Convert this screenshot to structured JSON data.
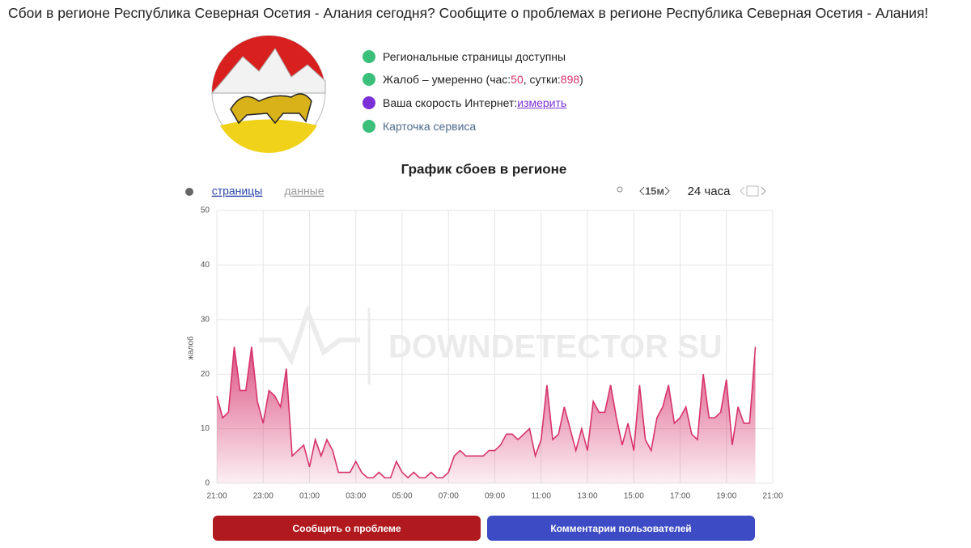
{
  "header": {
    "title": "Сбои в регионе Республика Северная Осетия - Алания сегодня? Сообщите о проблемах в регионе Республика Северная Осетия - Алания!"
  },
  "status": {
    "items": [
      {
        "text": "Региональные страницы доступны"
      },
      {
        "text": "Жалоб – умеренно (час: ",
        "hour": 50,
        "mid": ", сутки: ",
        "day": 898,
        "end": ")"
      },
      {
        "text": "Ваша скорость Интернет: ",
        "link": "измерить"
      },
      {
        "text": "Карточка сервиса"
      }
    ]
  },
  "toolbar": {
    "tabs": [
      "страницы",
      "данные"
    ],
    "interval": "15м",
    "range": "24 часа"
  },
  "buttons": [
    "Сообщить о проблеме",
    "Комментарии пользователей"
  ],
  "chart_data": {
    "type": "area",
    "title": "График сбоев в регионе",
    "y_label": "жалоб",
    "watermark": "DOWNDETECTOR SU",
    "color": "#d6336c",
    "grid": true,
    "x": [
      0,
      0.25,
      0.5,
      0.75,
      1,
      1.25,
      1.5,
      1.75,
      2,
      2.25,
      2.5,
      2.75,
      3,
      3.25,
      3.5,
      3.75,
      4,
      4.25,
      4.5,
      4.75,
      5,
      5.25,
      5.5,
      5.75,
      6,
      6.25,
      6.5,
      6.75,
      7,
      7.25,
      7.5,
      7.75,
      8,
      8.25,
      8.5,
      8.75,
      9,
      9.25,
      9.5,
      9.75,
      10,
      10.25,
      10.5,
      10.75,
      11,
      11.25,
      11.5,
      11.75,
      12,
      12.25,
      12.5,
      12.75,
      13,
      13.25,
      13.5,
      13.75,
      14,
      14.25,
      14.5,
      14.75,
      15,
      15.25,
      15.5,
      15.75,
      16,
      16.25,
      16.5,
      16.75,
      17,
      17.25,
      17.5,
      17.75,
      18,
      18.25,
      18.5,
      18.75,
      19,
      19.25,
      19.5,
      19.75,
      20,
      20.25,
      20.5,
      20.75,
      21,
      21.25,
      21.5,
      21.75,
      22,
      22.25,
      22.5,
      22.75,
      23,
      23.25
    ],
    "values": [
      16,
      12,
      13,
      25,
      17,
      17,
      25,
      15,
      11,
      17,
      16,
      14,
      21,
      5,
      6,
      7,
      3,
      8,
      5,
      8,
      6,
      2,
      2,
      2,
      4,
      2,
      1,
      1,
      2,
      1,
      1,
      4,
      2,
      1,
      2,
      1,
      1,
      2,
      1,
      1,
      2,
      5,
      6,
      5,
      5,
      5,
      5,
      6,
      6,
      7,
      9,
      9,
      8,
      9,
      10,
      5,
      8,
      18,
      8,
      9,
      14,
      10,
      6,
      10,
      6,
      15,
      13,
      13,
      18,
      12,
      7,
      11,
      6,
      18,
      8,
      6,
      12,
      14,
      18,
      11,
      12,
      14,
      9,
      8,
      20,
      12,
      12,
      13,
      19,
      7,
      14,
      11,
      11,
      25
    ],
    "xlim": [
      0,
      24
    ],
    "xticks": [
      {
        "value": 0,
        "label": "21:00"
      },
      {
        "value": 2,
        "label": "23:00"
      },
      {
        "value": 4,
        "label": "01:00"
      },
      {
        "value": 6,
        "label": "03:00"
      },
      {
        "value": 8,
        "label": "05:00"
      },
      {
        "value": 10,
        "label": "07:00"
      },
      {
        "value": 12,
        "label": "09:00"
      },
      {
        "value": 14,
        "label": "11:00"
      },
      {
        "value": 16,
        "label": "13:00"
      },
      {
        "value": 18,
        "label": "15:00"
      },
      {
        "value": 20,
        "label": "17:00"
      },
      {
        "value": 22,
        "label": "19:00"
      },
      {
        "value": 24,
        "label": "21:00"
      }
    ],
    "ylim": [
      0,
      50
    ],
    "yticks": [
      0,
      10,
      20,
      30,
      40,
      50
    ]
  }
}
